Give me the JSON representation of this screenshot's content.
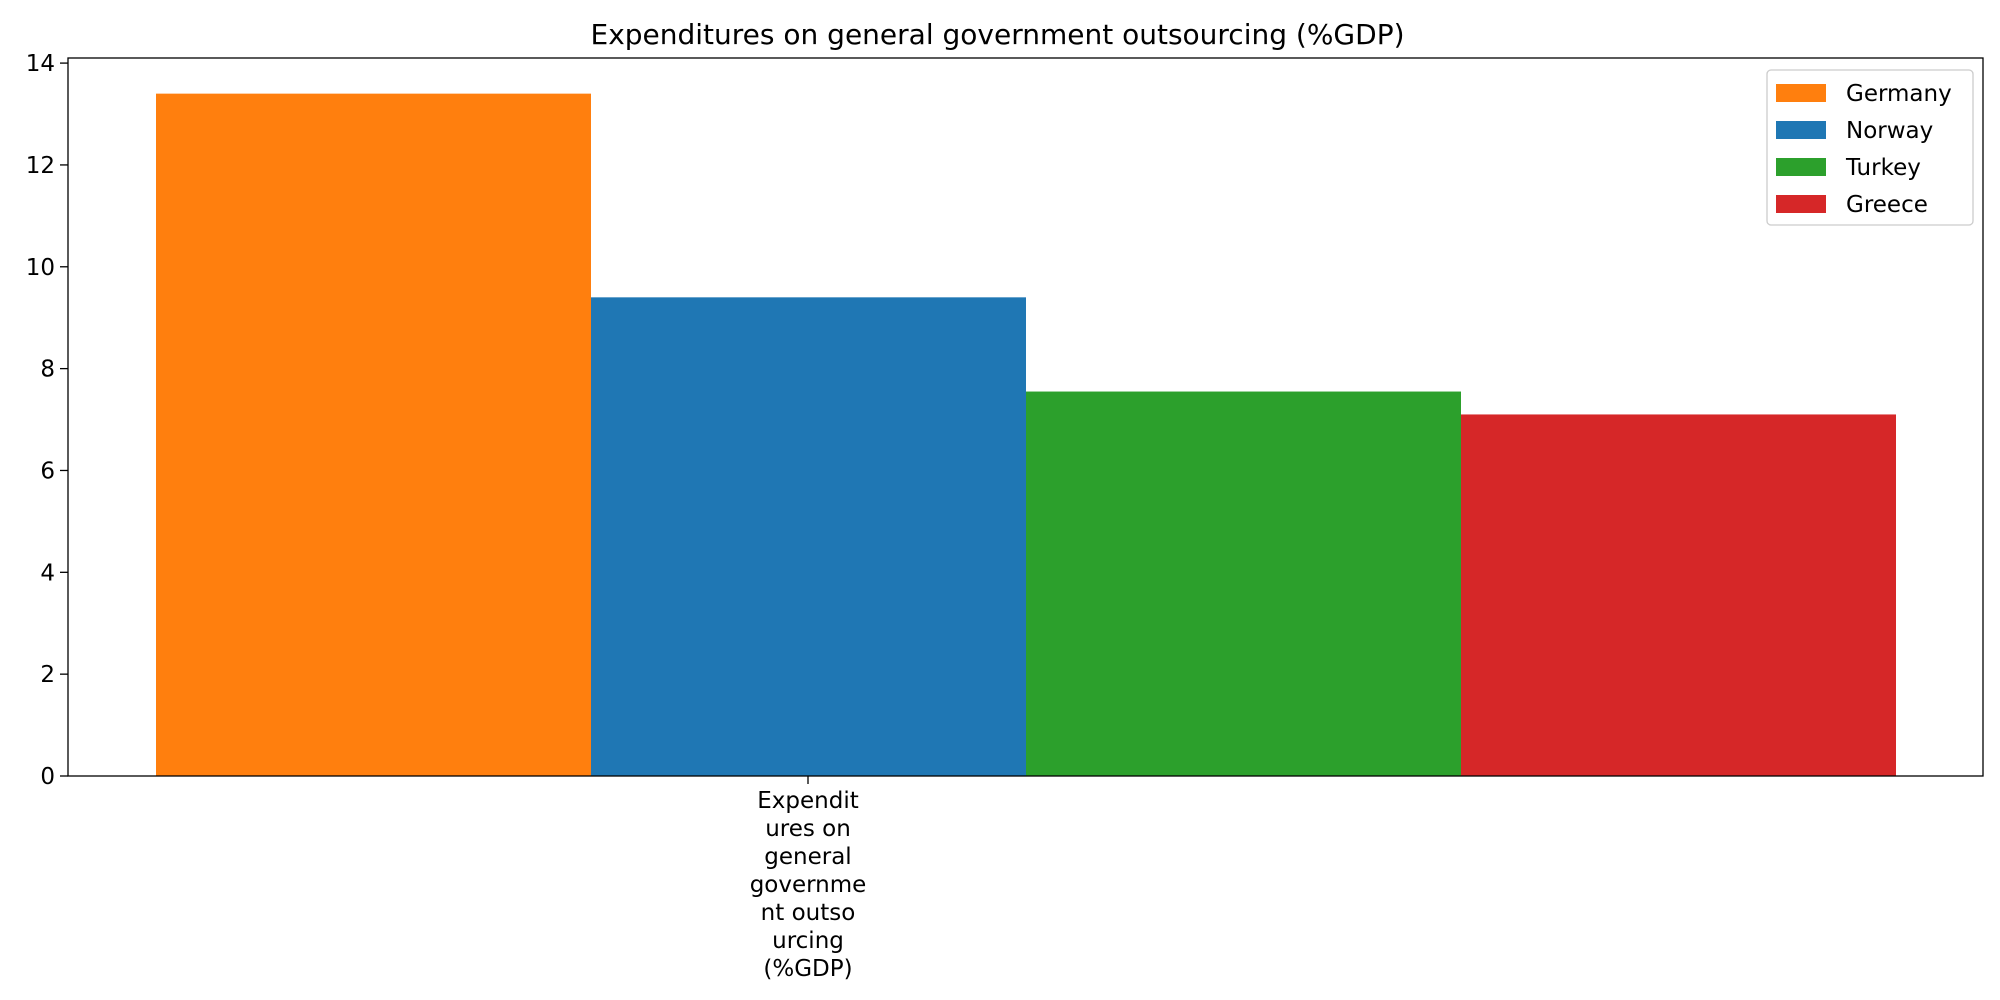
{
  "chart_data": {
    "type": "bar",
    "title": "Expenditures on general government outsourcing (%GDP)",
    "xlabel": "",
    "ylabel": "",
    "categories": [
      "Expenditures on general government outsourcing (%GDP)"
    ],
    "category_label_lines": [
      "Expendit",
      "ures on",
      "general",
      "governme",
      "nt outso",
      "urcing",
      "(%GDP)"
    ],
    "series": [
      {
        "name": "Germany",
        "values": [
          13.4
        ],
        "color": "#ff7f0e"
      },
      {
        "name": "Norway",
        "values": [
          9.4
        ],
        "color": "#1f77b4"
      },
      {
        "name": "Turkey",
        "values": [
          7.55
        ],
        "color": "#2ca02c"
      },
      {
        "name": "Greece",
        "values": [
          7.1
        ],
        "color": "#d62728"
      }
    ],
    "ylim": [
      0,
      14.1
    ],
    "yticks": [
      0,
      2,
      4,
      6,
      8,
      10,
      12,
      14
    ],
    "grid": false,
    "legend_position": "top-right"
  }
}
